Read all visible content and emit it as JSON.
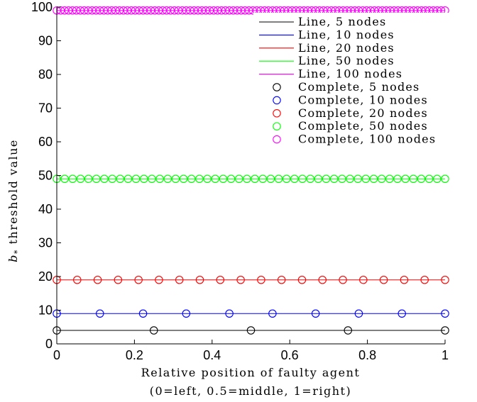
{
  "chart_data": {
    "type": "line",
    "xlabel": "Relative position of faulty agent",
    "xlabel_line2": "(0=left, 0.5=middle, 1=right)",
    "ylabel_symbol": "b",
    "ylabel_subscript": "*",
    "ylabel_rest": " threshold value",
    "xlim": [
      0,
      1
    ],
    "ylim": [
      0,
      100
    ],
    "xticks": [
      0,
      0.2,
      0.4,
      0.6,
      0.8,
      1
    ],
    "xtick_labels": [
      "0",
      "0.2",
      "0.4",
      "0.6",
      "0.8",
      "1"
    ],
    "yticks": [
      0,
      10,
      20,
      30,
      40,
      50,
      60,
      70,
      80,
      90,
      100
    ],
    "ytick_labels": [
      "0",
      "10",
      "20",
      "30",
      "40",
      "50",
      "60",
      "70",
      "80",
      "90",
      "100"
    ],
    "grid": false,
    "legend_position": "top-right",
    "series": [
      {
        "name": "Line, 5 nodes",
        "kind": "line",
        "color": "#000000",
        "x": [
          0,
          1
        ],
        "y": [
          4,
          4
        ]
      },
      {
        "name": "Line, 10 nodes",
        "kind": "line",
        "color": "#0000ff",
        "x": [
          0,
          1
        ],
        "y": [
          9,
          9
        ]
      },
      {
        "name": "Line, 20 nodes",
        "kind": "line",
        "color": "#ff0000",
        "x": [
          0,
          1
        ],
        "y": [
          19,
          19
        ]
      },
      {
        "name": "Line, 50 nodes",
        "kind": "line",
        "color": "#00ff00",
        "x": [
          0,
          1
        ],
        "y": [
          49,
          49
        ]
      },
      {
        "name": "Line, 100 nodes",
        "kind": "line",
        "color": "#ff00ff",
        "x": [
          0,
          1
        ],
        "y": [
          99,
          99
        ]
      },
      {
        "name": "Complete, 5 nodes",
        "kind": "markers",
        "color": "#000000",
        "n_points": 5,
        "y": 4
      },
      {
        "name": "Complete, 10 nodes",
        "kind": "markers",
        "color": "#0000ff",
        "n_points": 10,
        "y": 9
      },
      {
        "name": "Complete, 20 nodes",
        "kind": "markers",
        "color": "#ff0000",
        "n_points": 20,
        "y": 19
      },
      {
        "name": "Complete, 50 nodes",
        "kind": "markers",
        "color": "#00ff00",
        "n_points": 50,
        "y": 49
      },
      {
        "name": "Complete, 100 nodes",
        "kind": "markers",
        "color": "#ff00ff",
        "n_points": 100,
        "y": 99
      }
    ]
  }
}
